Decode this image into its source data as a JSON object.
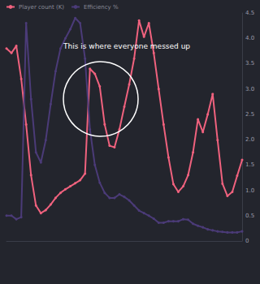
{
  "chart_data": {
    "type": "line",
    "annotation": "This is where everyone messed up",
    "categories": [
      null,
      null,
      null,
      null,
      null,
      null,
      null,
      null,
      null,
      null,
      null,
      null,
      null,
      null,
      null,
      null,
      null,
      null,
      null,
      null,
      null,
      null,
      null,
      null,
      null,
      null,
      null,
      null,
      null,
      null,
      null,
      null,
      null,
      null,
      null,
      null,
      null,
      null,
      null,
      null,
      null,
      null,
      null,
      null,
      null,
      null,
      null,
      null,
      null
    ],
    "series": [
      {
        "name": "Player count (K)",
        "color": "#f0627e",
        "marker": "circle",
        "line_style": "solid",
        "values": [
          3.8,
          3.71,
          3.85,
          3.2,
          2.3,
          1.3,
          0.7,
          0.55,
          0.61,
          0.72,
          0.85,
          0.95,
          1.02,
          1.08,
          1.14,
          1.2,
          1.33,
          3.4,
          3.3,
          3.05,
          2.3,
          1.88,
          1.85,
          2.2,
          2.65,
          3.09,
          3.6,
          4.35,
          4.03,
          4.3,
          3.71,
          3.0,
          2.3,
          1.65,
          1.12,
          0.97,
          1.08,
          1.3,
          1.75,
          2.4,
          2.15,
          2.5,
          2.9,
          1.99,
          1.13,
          0.89,
          0.97,
          1.29,
          1.6
        ]
      },
      {
        "name": "Efficiency %",
        "color": "#4b3b78",
        "marker": "circle",
        "line_style": "solid",
        "values": [
          0.5,
          0.5,
          0.43,
          0.47,
          4.3,
          2.8,
          1.75,
          1.55,
          1.99,
          2.7,
          3.35,
          3.8,
          4.0,
          4.18,
          4.4,
          4.3,
          3.6,
          2.2,
          1.5,
          1.15,
          0.95,
          0.85,
          0.85,
          0.92,
          0.87,
          0.8,
          0.7,
          0.6,
          0.55,
          0.5,
          0.44,
          0.36,
          0.36,
          0.39,
          0.39,
          0.39,
          0.43,
          0.42,
          0.34,
          0.3,
          0.27,
          0.23,
          0.21,
          0.19,
          0.18,
          0.17,
          0.17,
          0.17,
          0.19
        ]
      }
    ],
    "ylim": [
      0,
      4.5
    ],
    "yticks": [
      0,
      {
        "value": 0.5,
        "label": "0.5"
      },
      {
        "value": 1,
        "label": "1.0"
      },
      {
        "value": 1.5,
        "label": "1.5"
      },
      {
        "value": 2,
        "label": "2.0"
      },
      {
        "value": 2.5,
        "label": "2.5"
      },
      {
        "value": 3,
        "label": "3.0"
      },
      {
        "value": 3.5,
        "label": "3.5"
      },
      {
        "value": 4,
        "label": "4.0"
      },
      {
        "value": 4.5,
        "label": "4.5"
      }
    ],
    "grid": false,
    "legend": "top"
  }
}
